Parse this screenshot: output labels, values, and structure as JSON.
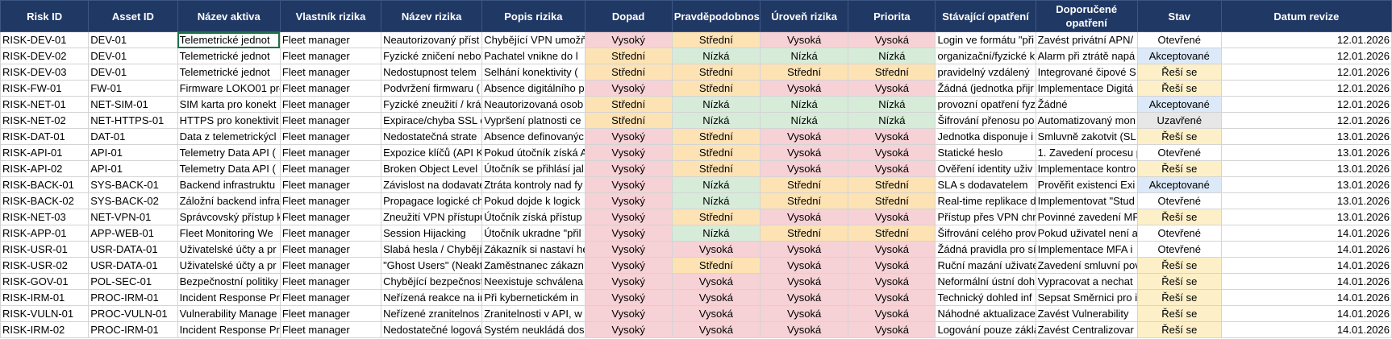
{
  "columns": [
    "Risk ID",
    "Asset ID",
    "Název aktiva",
    "Vlastník rizika",
    "Název rizika",
    "Popis rizika",
    "Dopad",
    "Pravděpodobnost",
    "Úroveň rizika",
    "Priorita",
    "Stávající opatření",
    "Doporučené opatření",
    "Stav",
    "Datum revize"
  ],
  "colors": {
    "high": "#f6d1d5",
    "medium": "#fde2b4",
    "low": "#d6ecd9",
    "header_bg": "#203864",
    "status_accepted": "#dce9f8",
    "status_solving": "#fdf0c9",
    "status_closed": "#e7e7e7"
  },
  "rows": [
    [
      "RISK-DEV-01",
      "DEV-01",
      "Telemetrické jednot",
      "Fleet manager",
      "Neautorizovaný příst",
      "Chybějící VPN umožň",
      "Vysoký",
      "Střední",
      "Vysoká",
      "Vysoká",
      "Login ve formátu \"při",
      "Zavést privátní APN/",
      "Otevřené",
      "12.01.2026"
    ],
    [
      "RISK-DEV-02",
      "DEV-01",
      "Telemetrické jednot",
      "Fleet manager",
      "Fyzické zničení nebo",
      "Pachatel vnikne do l",
      "Střední",
      "Nízká",
      "Nízká",
      "Nízká",
      "organizační/fyzické k",
      "Alarm při ztrátě napá",
      "Akceptované",
      "12.01.2026"
    ],
    [
      "RISK-DEV-03",
      "DEV-01",
      "Telemetrické jednot",
      "Fleet manager",
      "Nedostupnost telem",
      "Selhání konektivity (",
      "Střední",
      "Střední",
      "Střední",
      "Střední",
      "pravidelný vzdálený",
      "Integrované čipové S",
      "Řeší se",
      "12.01.2026"
    ],
    [
      "RISK-FW-01",
      "FW-01",
      "Firmware LOKO01 pro",
      "Fleet manager",
      "Podvržení firmwaru (",
      "Absence digitálního p",
      "Vysoký",
      "Střední",
      "Vysoká",
      "Vysoká",
      "Žádná (jednotka přijr",
      "Implementace Digitá",
      "Řeší se",
      "12.01.2026"
    ],
    [
      "RISK-NET-01",
      "NET-SIM-01",
      "SIM karta pro konekt",
      "Fleet manager",
      "Fyzické zneužití / krá",
      "Neautorizovaná osob",
      "Střední",
      "Nízká",
      "Nízká",
      "Nízká",
      "provozní opatření fyz",
      "Žádné",
      "Akceptované",
      "12.01.2026"
    ],
    [
      "RISK-NET-02",
      "NET-HTTPS-01",
      "HTTPS pro konektivit",
      "Fleet manager",
      "Expirace/chyba SSL c",
      "Vypršení platnosti ce",
      "Střední",
      "Nízká",
      "Nízká",
      "Nízká",
      "Šifrování přenosu po",
      "Automatizovaný mon",
      "Uzavřené",
      "12.01.2026"
    ],
    [
      "RISK-DAT-01",
      "DAT-01",
      "Data z telemetrickýcl",
      "Fleet manager",
      "Nedostatečná strate",
      "Absence definovanýc",
      "Vysoký",
      "Střední",
      "Vysoká",
      "Vysoká",
      "Jednotka disponuje i",
      "Smluvně zakotvit (SL",
      "Řeší se",
      "13.01.2026"
    ],
    [
      "RISK-API-01",
      "API-01",
      "Telemetry Data API (",
      "Fleet manager",
      "Expozice klíčů (API K",
      "Pokud útočník získá A",
      "Vysoký",
      "Střední",
      "Vysoká",
      "Vysoká",
      "Statické heslo",
      "1. Zavedení procesu p",
      "Otevřené",
      "13.01.2026"
    ],
    [
      "RISK-API-02",
      "API-01",
      "Telemetry Data API (",
      "Fleet manager",
      "Broken Object Level",
      "Útočník se přihlásí jal",
      "Vysoký",
      "Střední",
      "Vysoká",
      "Vysoká",
      "Ověření identity uživ",
      "Implementace kontro",
      "Řeší se",
      "13.01.2026"
    ],
    [
      "RISK-BACK-01",
      "SYS-BACK-01",
      "Backend infrastruktu",
      "Fleet manager",
      "Závislost na dodavate",
      "Ztráta kontroly nad fy",
      "Vysoký",
      "Nízká",
      "Střední",
      "Střední",
      "SLA s dodavatelem",
      "Prověřit existenci Exi",
      "Akceptované",
      "13.01.2026"
    ],
    [
      "RISK-BACK-02",
      "SYS-BACK-02",
      "Záložní backend infra",
      "Fleet manager",
      "Propagace logické ch",
      "Pokud dojde k logick",
      "Vysoký",
      "Nízká",
      "Střední",
      "Střední",
      "Real-time replikace d",
      "Implementovat \"Stud",
      "Otevřené",
      "13.01.2026"
    ],
    [
      "RISK-NET-03",
      "NET-VPN-01",
      "Správcovský přístup k",
      "Fleet manager",
      "Zneužití VPN přístupu",
      "Útočník získá přístup",
      "Vysoký",
      "Střední",
      "Vysoká",
      "Vysoká",
      "Přístup přes VPN chrá",
      "Povinné zavedení MF",
      "Řeší se",
      "13.01.2026"
    ],
    [
      "RISK-APP-01",
      "APP-WEB-01",
      "Fleet Monitoring We",
      "Fleet manager",
      "Session Hijacking",
      "Útočník ukradne \"přil",
      "Vysoký",
      "Nízká",
      "Střední",
      "Střední",
      "Šifrování celého prov",
      "Pokud uživatel není a",
      "Otevřené",
      "14.01.2026"
    ],
    [
      "RISK-USR-01",
      "USR-DATA-01",
      "Uživatelské účty a pr",
      "Fleet manager",
      "Slabá hesla / Chybějí",
      "Zákazník si nastaví he",
      "Vysoký",
      "Vysoká",
      "Vysoká",
      "Vysoká",
      "Žádná pravidla pro sí",
      "Implementace MFA i",
      "Otevřené",
      "14.01.2026"
    ],
    [
      "RISK-USR-02",
      "USR-DATA-01",
      "Uživatelské účty a pr",
      "Fleet manager",
      "\"Ghost Users\" (Neakt",
      "Zaměstnanec zákazní",
      "Vysoký",
      "Střední",
      "Vysoká",
      "Vysoká",
      "Ruční mazání uživate",
      "Zavedení smluvní pov",
      "Řeší se",
      "14.01.2026"
    ],
    [
      "RISK-GOV-01",
      "POL-SEC-01",
      "Bezpečnostní politiky",
      "Fleet manager",
      "Chybějící bezpečnost",
      "Neexistuje schválena",
      "Vysoký",
      "Vysoká",
      "Vysoká",
      "Vysoká",
      "Neformální ústní doh",
      "Vypracovat a nechat",
      "Řeší se",
      "14.01.2026"
    ],
    [
      "RISK-IRM-01",
      "PROC-IRM-01",
      "Incident Response Pr",
      "Fleet manager",
      "Neřízená reakce na ir",
      "Při kybernetickém in",
      "Vysoký",
      "Vysoká",
      "Vysoká",
      "Vysoká",
      "Technický dohled inf",
      "Sepsat Směrnici pro i",
      "Řeší se",
      "14.01.2026"
    ],
    [
      "RISK-VULN-01",
      "PROC-VULN-01",
      "Vulnerability Manage",
      "Fleet manager",
      "Neřízené zranitelnos",
      "Zranitelnosti v API, w",
      "Vysoký",
      "Vysoká",
      "Vysoká",
      "Vysoká",
      "Náhodné aktualizace",
      "Zavést Vulnerability",
      "Řeší se",
      "14.01.2026"
    ],
    [
      "RISK-IRM-02",
      "PROC-IRM-01",
      "Incident Response Pr",
      "Fleet manager",
      "Nedostatečné logová",
      "Systém neukládá dos",
      "Vysoký",
      "Vysoká",
      "Vysoká",
      "Vysoká",
      "Logování pouze zákla",
      "Zavést Centralizovar",
      "Řeší se",
      "14.01.2026"
    ]
  ]
}
